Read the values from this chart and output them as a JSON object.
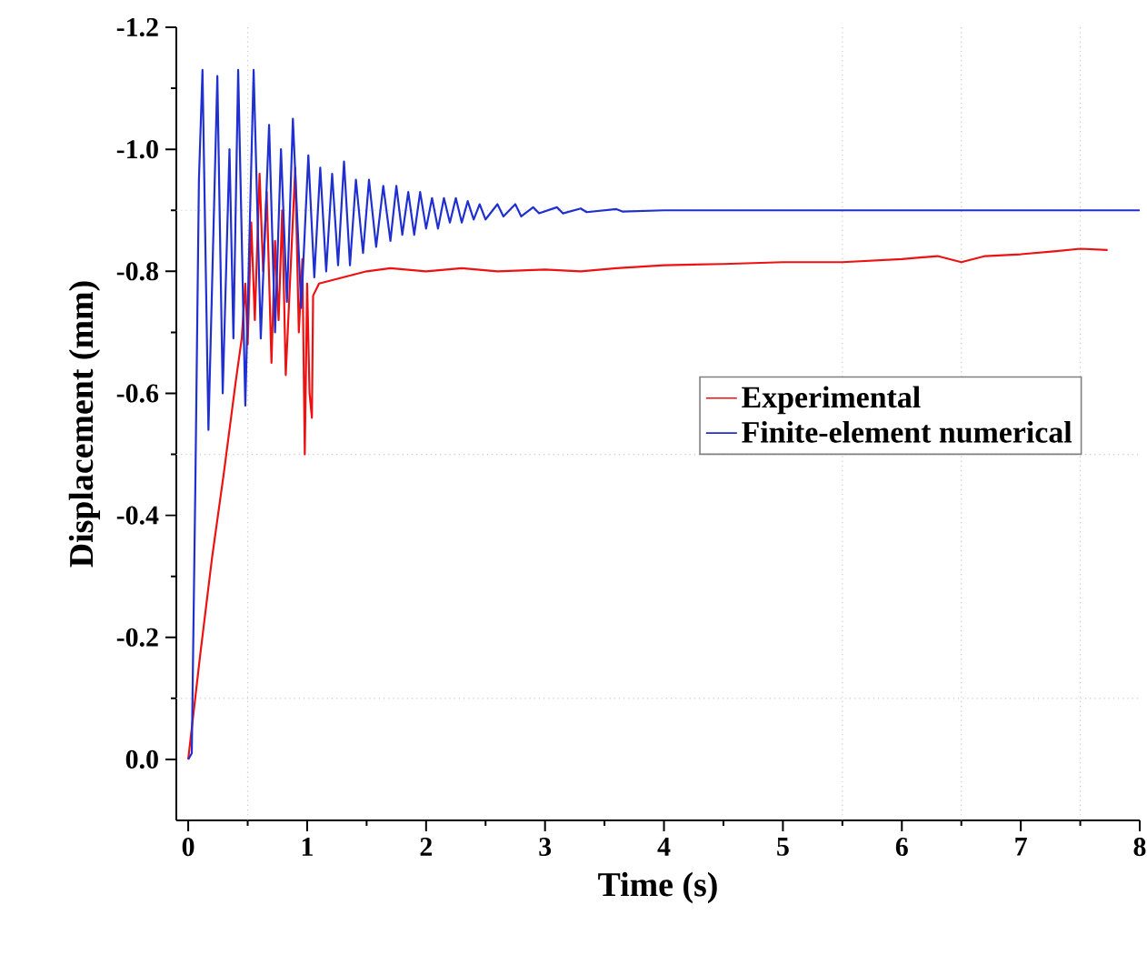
{
  "chart_data": {
    "type": "line",
    "xlabel": "Time (s)",
    "ylabel": "Displacement (mm)",
    "xlim": [
      -0.1,
      8
    ],
    "ylim": [
      0.1,
      -1.2
    ],
    "xticks": [
      0,
      1,
      2,
      3,
      4,
      5,
      6,
      7,
      8
    ],
    "yticks": [
      {
        "value": -1.2,
        "label": "-1.2"
      },
      {
        "value": -1.0,
        "label": "-1.0"
      },
      {
        "value": -0.8,
        "label": "-0.8"
      },
      {
        "value": -0.6,
        "label": "-0.6"
      },
      {
        "value": -0.4,
        "label": "-0.4"
      },
      {
        "value": -0.2,
        "label": "-0.2"
      },
      {
        "value": 0.0,
        "label": "0.0"
      }
    ],
    "legend": "right",
    "line_style": "solid",
    "ref_lines": [
      {
        "axis": "x",
        "value": 0.5,
        "color": "#c8c8c8",
        "line_style": "dotted"
      },
      {
        "axis": "x",
        "value": 5.5,
        "color": "#c8c8c8",
        "line_style": "dotted"
      },
      {
        "axis": "x",
        "value": 6.5,
        "color": "#c8c8c8",
        "line_style": "dotted"
      },
      {
        "axis": "x",
        "value": 7.5,
        "color": "#c8c8c8",
        "line_style": "dotted"
      },
      {
        "axis": "y",
        "value": -0.9,
        "color": "#c8c8c8",
        "line_style": "dotted"
      },
      {
        "axis": "y",
        "value": -0.5,
        "color": "#c8c8c8",
        "line_style": "dotted"
      },
      {
        "axis": "y",
        "value": -0.1,
        "color": "#c8c8c8",
        "line_style": "dotted"
      }
    ],
    "series": [
      {
        "name": "Experimental",
        "color": "#ee1111",
        "x": [
          0.0,
          0.1,
          0.2,
          0.3,
          0.4,
          0.45,
          0.48,
          0.5,
          0.53,
          0.56,
          0.6,
          0.63,
          0.66,
          0.7,
          0.73,
          0.76,
          0.79,
          0.82,
          0.86,
          0.9,
          0.93,
          0.96,
          0.98,
          1.0,
          1.02,
          1.04,
          1.05,
          1.1,
          1.3,
          1.5,
          1.7,
          2.0,
          2.3,
          2.6,
          3.0,
          3.3,
          3.6,
          4.0,
          4.5,
          5.0,
          5.5,
          6.0,
          6.3,
          6.5,
          6.7,
          7.0,
          7.3,
          7.5,
          7.73
        ],
        "values": [
          0.0,
          -0.17,
          -0.33,
          -0.47,
          -0.62,
          -0.69,
          -0.78,
          -0.68,
          -0.88,
          -0.72,
          -0.96,
          -0.8,
          -0.93,
          -0.65,
          -0.85,
          -0.72,
          -0.9,
          -0.63,
          -0.8,
          -0.97,
          -0.7,
          -0.82,
          -0.5,
          -0.78,
          -0.6,
          -0.56,
          -0.76,
          -0.78,
          -0.79,
          -0.8,
          -0.805,
          -0.8,
          -0.805,
          -0.8,
          -0.803,
          -0.8,
          -0.805,
          -0.81,
          -0.812,
          -0.815,
          -0.815,
          -0.82,
          -0.825,
          -0.815,
          -0.825,
          -0.828,
          -0.833,
          -0.837,
          -0.835
        ]
      },
      {
        "name": "Finite-element numerical",
        "color": "#1f2fd0",
        "x": [
          0.0,
          0.03,
          0.06,
          0.09,
          0.12,
          0.17,
          0.245,
          0.29,
          0.347,
          0.38,
          0.42,
          0.48,
          0.55,
          0.61,
          0.68,
          0.73,
          0.78,
          0.83,
          0.88,
          0.95,
          1.01,
          1.06,
          1.11,
          1.16,
          1.21,
          1.26,
          1.31,
          1.36,
          1.41,
          1.47,
          1.52,
          1.58,
          1.64,
          1.7,
          1.75,
          1.8,
          1.85,
          1.9,
          1.95,
          2.0,
          2.05,
          2.1,
          2.15,
          2.2,
          2.25,
          2.3,
          2.35,
          2.4,
          2.45,
          2.5,
          2.6,
          2.65,
          2.75,
          2.8,
          2.9,
          2.95,
          3.1,
          3.15,
          3.3,
          3.35,
          3.6,
          3.65,
          4.0,
          8.0
        ],
        "values": [
          0.0,
          -0.01,
          -0.45,
          -0.95,
          -1.13,
          -0.54,
          -1.12,
          -0.6,
          -1.0,
          -0.69,
          -1.13,
          -0.58,
          -1.13,
          -0.69,
          -1.04,
          -0.7,
          -1.0,
          -0.75,
          -1.05,
          -0.74,
          -0.99,
          -0.79,
          -0.97,
          -0.8,
          -0.96,
          -0.81,
          -0.98,
          -0.81,
          -0.95,
          -0.83,
          -0.95,
          -0.84,
          -0.94,
          -0.85,
          -0.94,
          -0.86,
          -0.93,
          -0.86,
          -0.93,
          -0.87,
          -0.92,
          -0.87,
          -0.92,
          -0.88,
          -0.92,
          -0.88,
          -0.915,
          -0.885,
          -0.91,
          -0.885,
          -0.91,
          -0.89,
          -0.91,
          -0.89,
          -0.905,
          -0.895,
          -0.905,
          -0.895,
          -0.903,
          -0.897,
          -0.902,
          -0.898,
          -0.9,
          -0.9
        ]
      }
    ]
  }
}
